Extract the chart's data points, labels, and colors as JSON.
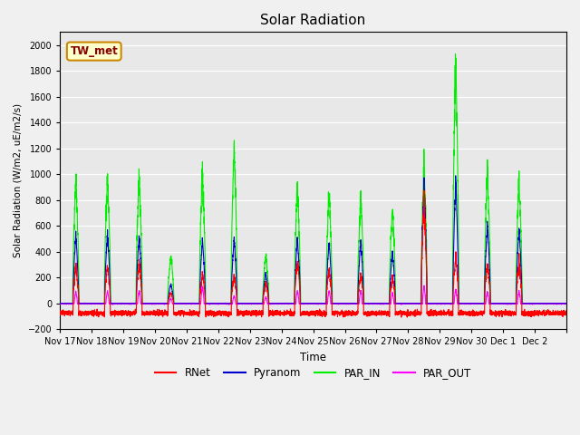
{
  "title": "Solar Radiation",
  "ylabel": "Solar Radiation (W/m2, uE/m2/s)",
  "xlabel": "Time",
  "ylim": [
    -200,
    2100
  ],
  "yticks": [
    -200,
    0,
    200,
    400,
    600,
    800,
    1000,
    1200,
    1400,
    1600,
    1800,
    2000
  ],
  "fig_bg": "#f0f0f0",
  "plot_bg": "#e8e8e8",
  "colors": {
    "RNet": "#ff0000",
    "Pyranom": "#0000cc",
    "PAR_IN": "#00ee00",
    "PAR_OUT": "#ff00ff"
  },
  "annotation_text": "TW_met",
  "annotation_bg": "#ffffcc",
  "annotation_border": "#cc8800",
  "annotation_text_color": "#880000",
  "days_labels": [
    "Nov 17",
    "Nov 18",
    "Nov 19",
    "Nov 20",
    "Nov 21",
    "Nov 22",
    "Nov 23",
    "Nov 24",
    "Nov 25",
    "Nov 26",
    "Nov 27",
    "Nov 28",
    "Nov 29",
    "Nov 30",
    "Dec 1",
    "Dec 2"
  ],
  "day_peaks_PAR_IN": [
    980,
    980,
    1000,
    370,
    1030,
    1210,
    375,
    910,
    860,
    850,
    730,
    1080,
    1900,
    1020,
    950,
    0
  ],
  "day_peaks_Pyranom": [
    520,
    540,
    530,
    150,
    490,
    500,
    240,
    500,
    470,
    490,
    400,
    940,
    940,
    620,
    580,
    0
  ],
  "day_peaks_RNet": [
    280,
    290,
    320,
    80,
    220,
    210,
    160,
    330,
    260,
    230,
    200,
    780,
    350,
    310,
    310,
    0
  ],
  "day_peaks_PAR_OUT": [
    90,
    95,
    100,
    40,
    130,
    60,
    50,
    100,
    100,
    100,
    80,
    130,
    110,
    90,
    95,
    0
  ],
  "night_RNet": -75,
  "line_width": 0.8
}
